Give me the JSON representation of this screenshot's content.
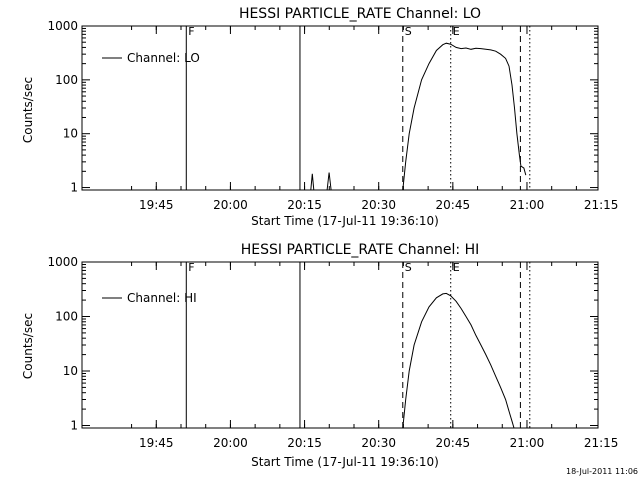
{
  "timestamp": "18-Jul-2011 11:06",
  "chart_data": [
    {
      "type": "line",
      "title": "HESSI PARTICLE_RATE Channel: LO",
      "xlabel": "Start Time (17-Jul-11 19:36:10)",
      "ylabel": "Counts/sec",
      "yscale": "log",
      "xlim": [
        -6.2,
        98.2
      ],
      "ylim": [
        0.9,
        1000
      ],
      "x_units": "minutes after 19:36:10",
      "xticks": [
        {
          "x": 8.83,
          "label": "19:45"
        },
        {
          "x": 23.83,
          "label": "20:00"
        },
        {
          "x": 38.83,
          "label": "20:15"
        },
        {
          "x": 53.83,
          "label": "20:30"
        },
        {
          "x": 68.83,
          "label": "20:45"
        },
        {
          "x": 83.83,
          "label": "21:00"
        },
        {
          "x": 98.83,
          "label": "21:15"
        }
      ],
      "yticks": [
        {
          "y": 1,
          "label": "1"
        },
        {
          "y": 10,
          "label": "10"
        },
        {
          "y": 100,
          "label": "100"
        },
        {
          "y": 1000,
          "label": "1000"
        }
      ],
      "legend": {
        "entries": [
          "Channel: LO"
        ],
        "position": "top-left"
      },
      "markers": [
        {
          "x": 14.9,
          "label": "F",
          "style": "solid"
        },
        {
          "x": 37.9,
          "label": "",
          "style": "solid"
        },
        {
          "x": 58.7,
          "label": "S",
          "style": "dashed"
        },
        {
          "x": 68.4,
          "label": "E",
          "style": "dotted"
        },
        {
          "x": 82.5,
          "label": "",
          "style": "dashed"
        },
        {
          "x": 84.4,
          "label": "",
          "style": "dotted"
        }
      ],
      "series": [
        {
          "name": "Channel: LO",
          "segments": [
            [
              [
                40.1,
                0.9
              ],
              [
                40.4,
                1.8
              ],
              [
                40.7,
                0.9
              ]
            ],
            [
              [
                43.4,
                0.9
              ],
              [
                43.8,
                1.9
              ],
              [
                44.2,
                0.9
              ]
            ],
            [
              [
                58.7,
                0.9
              ],
              [
                59.3,
                3
              ],
              [
                60,
                10
              ],
              [
                61,
                30
              ],
              [
                62.5,
                100
              ],
              [
                64,
                200
              ],
              [
                65.5,
                350
              ],
              [
                66.8,
                450
              ],
              [
                67.5,
                480
              ],
              [
                68.4,
                460
              ],
              [
                69.5,
                400
              ],
              [
                70.5,
                380
              ],
              [
                71.5,
                390
              ],
              [
                72.5,
                370
              ],
              [
                73.5,
                385
              ],
              [
                74.5,
                380
              ],
              [
                75.5,
                370
              ],
              [
                76.5,
                360
              ],
              [
                77.5,
                340
              ],
              [
                78.5,
                300
              ],
              [
                79.5,
                250
              ],
              [
                80.2,
                180
              ],
              [
                80.8,
                80
              ],
              [
                81.3,
                30
              ],
              [
                81.8,
                10
              ],
              [
                82.3,
                4
              ],
              [
                82.6,
                2.5
              ],
              [
                83.2,
                2.3
              ],
              [
                83.6,
                1.7
              ]
            ]
          ]
        }
      ]
    },
    {
      "type": "line",
      "title": "HESSI PARTICLE_RATE Channel: HI",
      "xlabel": "Start Time (17-Jul-11 19:36:10)",
      "ylabel": "Counts/sec",
      "yscale": "log",
      "xlim": [
        -6.2,
        98.2
      ],
      "ylim": [
        0.9,
        1000
      ],
      "x_units": "minutes after 19:36:10",
      "xticks": [
        {
          "x": 8.83,
          "label": "19:45"
        },
        {
          "x": 23.83,
          "label": "20:00"
        },
        {
          "x": 38.83,
          "label": "20:15"
        },
        {
          "x": 53.83,
          "label": "20:30"
        },
        {
          "x": 68.83,
          "label": "20:45"
        },
        {
          "x": 83.83,
          "label": "21:00"
        },
        {
          "x": 98.83,
          "label": "21:15"
        }
      ],
      "yticks": [
        {
          "y": 1,
          "label": "1"
        },
        {
          "y": 10,
          "label": "10"
        },
        {
          "y": 100,
          "label": "100"
        },
        {
          "y": 1000,
          "label": "1000"
        }
      ],
      "legend": {
        "entries": [
          "Channel: HI"
        ],
        "position": "top-left"
      },
      "markers": [
        {
          "x": 14.9,
          "label": "F",
          "style": "solid"
        },
        {
          "x": 37.9,
          "label": "",
          "style": "solid"
        },
        {
          "x": 58.7,
          "label": "S",
          "style": "dashed"
        },
        {
          "x": 68.4,
          "label": "E",
          "style": "dotted"
        },
        {
          "x": 82.5,
          "label": "",
          "style": "dashed"
        },
        {
          "x": 84.4,
          "label": "",
          "style": "dotted"
        }
      ],
      "series": [
        {
          "name": "Channel: HI",
          "segments": [
            [
              [
                58.7,
                0.9
              ],
              [
                59.3,
                3
              ],
              [
                60,
                10
              ],
              [
                61,
                30
              ],
              [
                62.5,
                80
              ],
              [
                64,
                150
              ],
              [
                65.5,
                220
              ],
              [
                66.8,
                260
              ],
              [
                67.5,
                265
              ],
              [
                68.4,
                240
              ],
              [
                69.5,
                190
              ],
              [
                70.5,
                140
              ],
              [
                71.5,
                100
              ],
              [
                72.5,
                70
              ],
              [
                73.5,
                45
              ],
              [
                74.5,
                30
              ],
              [
                75.5,
                20
              ],
              [
                76.5,
                13
              ],
              [
                77.5,
                8
              ],
              [
                78.5,
                5
              ],
              [
                79.5,
                3
              ],
              [
                80.3,
                1.7
              ],
              [
                80.8,
                1.2
              ],
              [
                81.2,
                0.9
              ]
            ]
          ]
        }
      ]
    }
  ]
}
